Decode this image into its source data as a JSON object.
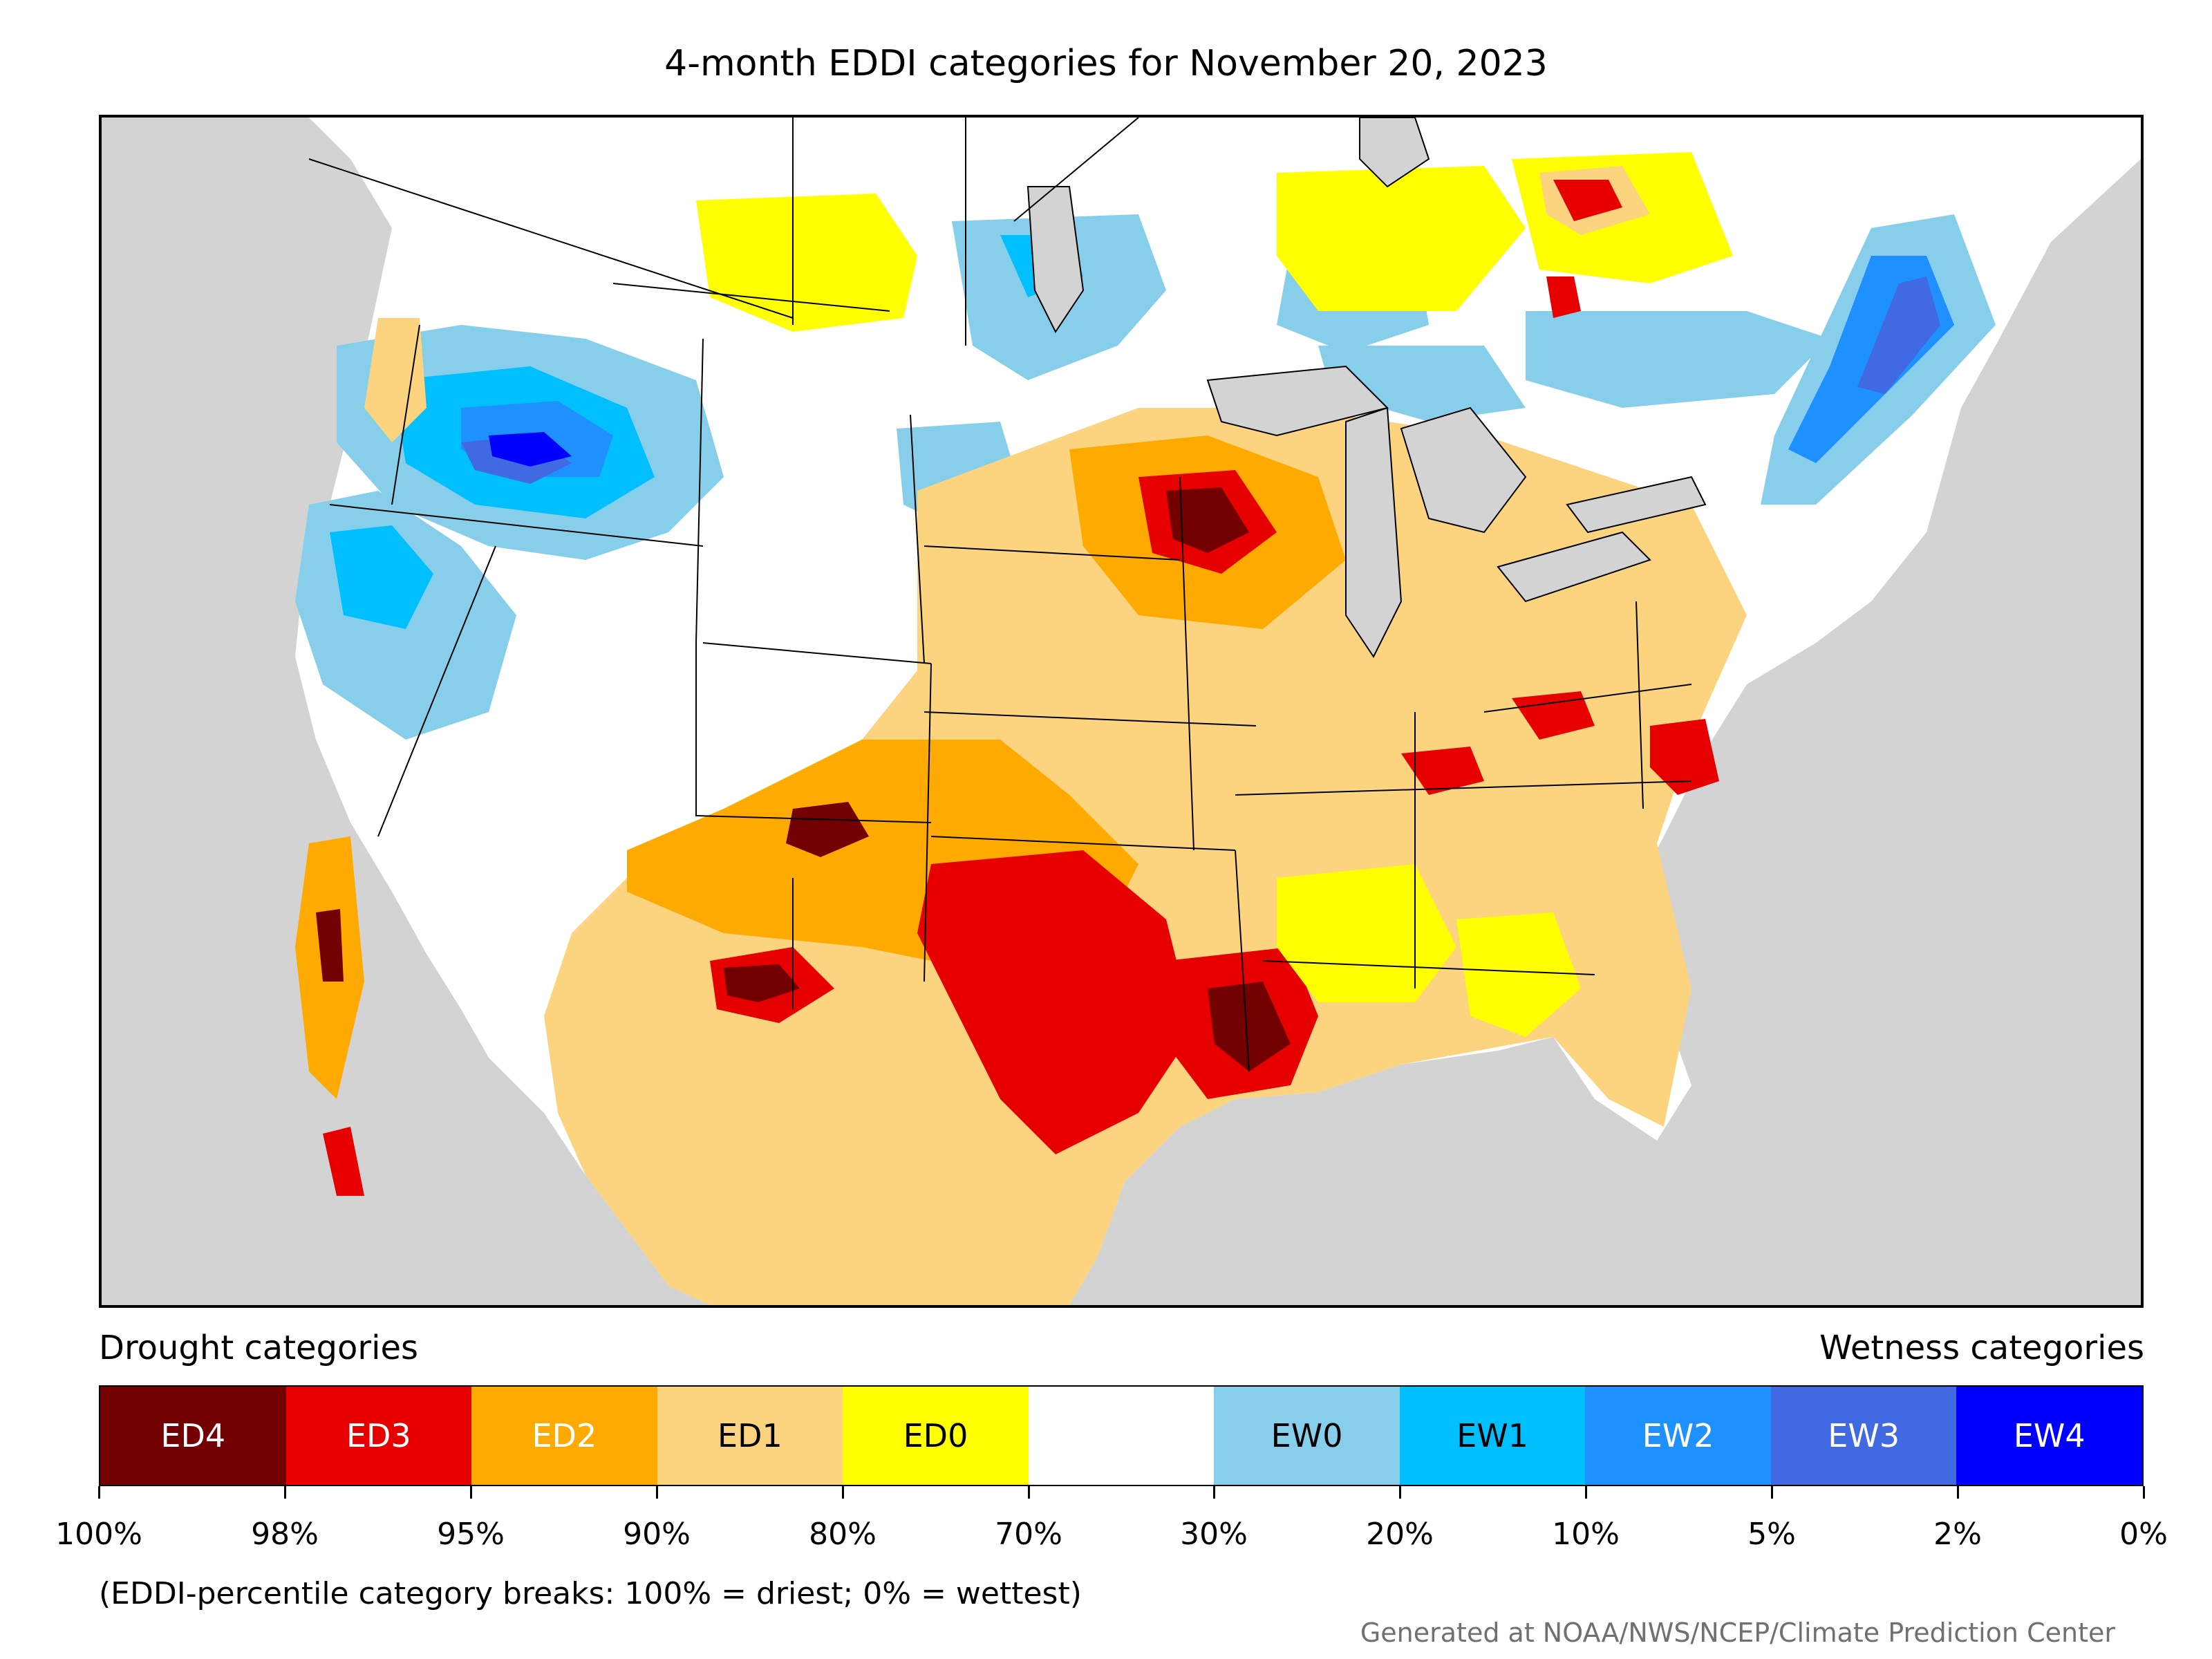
{
  "title": "4-month EDDI categories for November 20, 2023",
  "legend": {
    "drought_heading": "Drought categories",
    "wetness_heading": "Wetness categories",
    "categories": [
      {
        "label": "ED4",
        "color": "#730000",
        "text_color": "#ffffff"
      },
      {
        "label": "ED3",
        "color": "#e60000",
        "text_color": "#ffffff"
      },
      {
        "label": "ED2",
        "color": "#ffaa00",
        "text_color": "#ffffff"
      },
      {
        "label": "ED1",
        "color": "#fcd37f",
        "text_color": "#000000"
      },
      {
        "label": "ED0",
        "color": "#ffff00",
        "text_color": "#000000"
      },
      {
        "label": "",
        "color": "#ffffff",
        "text_color": "#000000"
      },
      {
        "label": "EW0",
        "color": "#87ceeb",
        "text_color": "#000000"
      },
      {
        "label": "EW1",
        "color": "#00bfff",
        "text_color": "#000000"
      },
      {
        "label": "EW2",
        "color": "#1e90ff",
        "text_color": "#ffffff"
      },
      {
        "label": "EW3",
        "color": "#4169e1",
        "text_color": "#ffffff"
      },
      {
        "label": "EW4",
        "color": "#0000ff",
        "text_color": "#ffffff"
      }
    ],
    "breaks": [
      "100%",
      "98%",
      "95%",
      "90%",
      "80%",
      "70%",
      "30%",
      "20%",
      "10%",
      "5%",
      "2%",
      "0%"
    ]
  },
  "footnote": "(EDDI-percentile category breaks: 100% = driest; 0% = wettest)",
  "credit": "Generated at NOAA/NWS/NCEP/Climate Prediction Center",
  "map": {
    "ocean_color": "#d3d3d3",
    "land_color": "#ffffff"
  }
}
